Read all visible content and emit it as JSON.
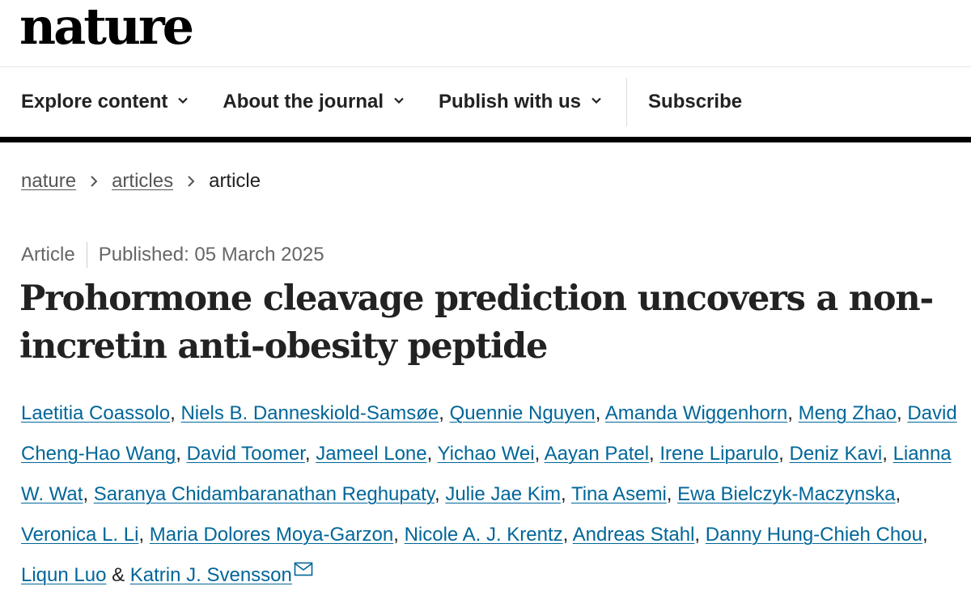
{
  "brand": {
    "logo_text": "nature"
  },
  "nav": {
    "items": [
      {
        "label": "Explore content"
      },
      {
        "label": "About the journal"
      },
      {
        "label": "Publish with us"
      }
    ],
    "subscribe_label": "Subscribe"
  },
  "breadcrumb": {
    "items": [
      "nature",
      "articles"
    ],
    "current": "article"
  },
  "article": {
    "type": "Article",
    "published": "Published: 05 March 2025",
    "title": "Prohormone cleavage prediction uncovers a non-incretin anti-obesity peptide",
    "authors": [
      "Laetitia Coassolo",
      "Niels B. Danneskiold-Samsøe",
      "Quennie Nguyen",
      "Amanda Wiggenhorn",
      "Meng Zhao",
      "David Cheng-Hao Wang",
      "David Toomer",
      "Jameel Lone",
      "Yichao Wei",
      "Aayan Patel",
      "Irene Liparulo",
      "Deniz Kavi",
      "Lianna W. Wat",
      "Saranya Chidambaranathan Reghupaty",
      "Julie Jae Kim",
      "Tina Asemi",
      "Ewa Bielczyk-Maczynska",
      "Veronica L. Li",
      "Maria Dolores Moya-Garzon",
      "Nicole A. J. Krentz",
      "Andreas Stahl",
      "Danny Hung-Chieh Chou",
      "Liqun Luo",
      "Katrin J. Svensson"
    ],
    "author_separator": ", ",
    "final_conjunction": " & "
  },
  "icons": {
    "chevron": "chevron-down-icon",
    "breadcrumb_sep": "chevron-right-icon",
    "corresponding": "mail-icon"
  },
  "colors": {
    "link": "#006699",
    "text": "#222222",
    "muted": "#666666"
  }
}
